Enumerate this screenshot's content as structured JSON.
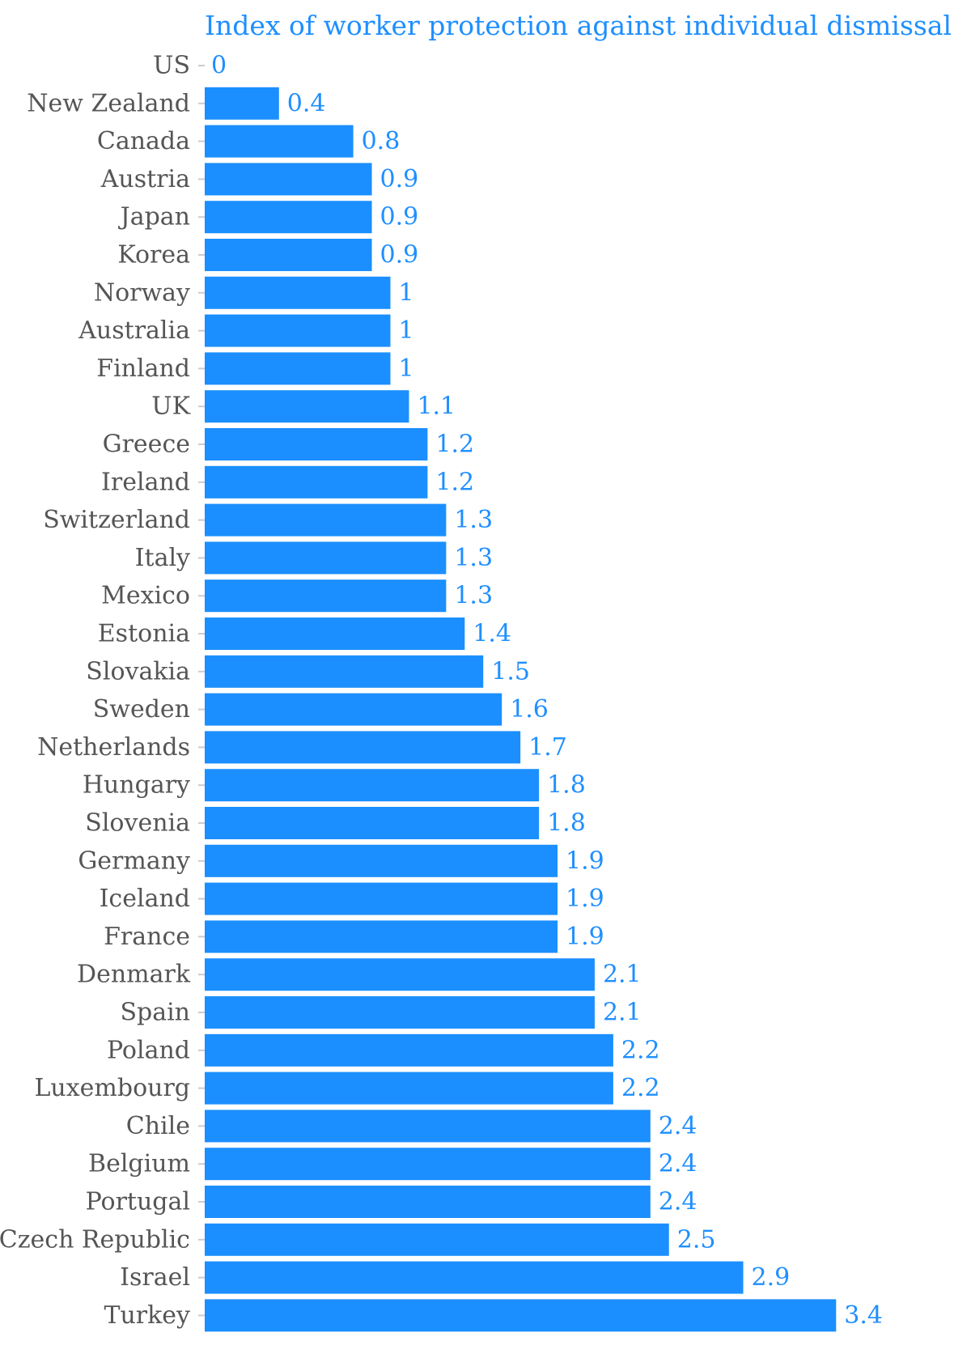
{
  "chart_data": {
    "type": "bar",
    "orientation": "horizontal",
    "title": "Index of worker protection against individual dismissal",
    "xlabel": "",
    "ylabel": "",
    "xlim": [
      0,
      3.4
    ],
    "grid": false,
    "legend": "none",
    "colors": {
      "bar": "#1b8fff",
      "value_label": "#1f8fff",
      "category_label": "#555555",
      "title": "#1f8fff",
      "tick": "#cccccc"
    },
    "categories": [
      "US",
      "New Zealand",
      "Canada",
      "Austria",
      "Japan",
      "Korea",
      "Norway",
      "Australia",
      "Finland",
      "UK",
      "Greece",
      "Ireland",
      "Switzerland",
      "Italy",
      "Mexico",
      "Estonia",
      "Slovakia",
      "Sweden",
      "Netherlands",
      "Hungary",
      "Slovenia",
      "Germany",
      "Iceland",
      "France",
      "Denmark",
      "Spain",
      "Poland",
      "Luxembourg",
      "Chile",
      "Belgium",
      "Portugal",
      "Czech Republic",
      "Israel",
      "Turkey"
    ],
    "values": [
      0,
      0.4,
      0.8,
      0.9,
      0.9,
      0.9,
      1,
      1,
      1,
      1.1,
      1.2,
      1.2,
      1.3,
      1.3,
      1.3,
      1.4,
      1.5,
      1.6,
      1.7,
      1.8,
      1.8,
      1.9,
      1.9,
      1.9,
      2.1,
      2.1,
      2.2,
      2.2,
      2.4,
      2.4,
      2.4,
      2.5,
      2.9,
      3.4
    ],
    "value_labels": [
      "0",
      "0.4",
      "0.8",
      "0.9",
      "0.9",
      "0.9",
      "1",
      "1",
      "1",
      "1.1",
      "1.2",
      "1.2",
      "1.3",
      "1.3",
      "1.3",
      "1.4",
      "1.5",
      "1.6",
      "1.7",
      "1.8",
      "1.8",
      "1.9",
      "1.9",
      "1.9",
      "2.1",
      "2.1",
      "2.2",
      "2.2",
      "2.4",
      "2.4",
      "2.4",
      "2.5",
      "2.9",
      "3.4"
    ]
  }
}
